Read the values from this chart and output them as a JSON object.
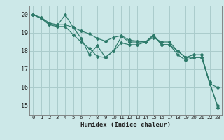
{
  "title": "",
  "xlabel": "Humidex (Indice chaleur)",
  "background_color": "#cce8e8",
  "grid_color": "#aacccc",
  "line_color": "#2d7a6a",
  "xlim": [
    -0.5,
    23.5
  ],
  "ylim": [
    14.5,
    20.5
  ],
  "xticks": [
    0,
    1,
    2,
    3,
    4,
    5,
    6,
    7,
    8,
    9,
    10,
    11,
    12,
    13,
    14,
    15,
    16,
    17,
    18,
    19,
    20,
    21,
    22,
    23
  ],
  "yticks": [
    15,
    16,
    17,
    18,
    19,
    20
  ],
  "line1_x": [
    0,
    1,
    2,
    3,
    4,
    5,
    6,
    7,
    8,
    9,
    10,
    11,
    12,
    13,
    14,
    15,
    16,
    17,
    18,
    19,
    20,
    21,
    22,
    23
  ],
  "line1_y": [
    20.0,
    19.8,
    19.5,
    19.4,
    20.0,
    19.3,
    18.7,
    17.8,
    18.3,
    17.65,
    18.0,
    18.8,
    18.5,
    18.5,
    18.5,
    18.85,
    18.35,
    18.35,
    18.0,
    17.65,
    17.65,
    17.65,
    16.3,
    14.9
  ],
  "line2_x": [
    0,
    1,
    2,
    3,
    4,
    5,
    6,
    7,
    8,
    9,
    10,
    11,
    12,
    13,
    14,
    15,
    16,
    17,
    18,
    19,
    20,
    21,
    22,
    23
  ],
  "line2_y": [
    20.0,
    19.85,
    19.55,
    19.45,
    19.45,
    19.3,
    19.1,
    18.95,
    18.7,
    18.55,
    18.75,
    18.85,
    18.6,
    18.55,
    18.5,
    18.75,
    18.5,
    18.5,
    18.0,
    17.65,
    17.8,
    17.8,
    16.2,
    16.0
  ],
  "line3_x": [
    0,
    1,
    2,
    3,
    4,
    5,
    6,
    7,
    8,
    9,
    10,
    11,
    12,
    13,
    14,
    15,
    16,
    17,
    18,
    19,
    20,
    21,
    22,
    23
  ],
  "line3_y": [
    20.0,
    19.8,
    19.45,
    19.35,
    19.35,
    18.9,
    18.5,
    18.15,
    17.7,
    17.65,
    18.0,
    18.45,
    18.35,
    18.35,
    18.5,
    18.9,
    18.35,
    18.35,
    17.8,
    17.5,
    17.65,
    17.65,
    16.2,
    15.0
  ]
}
